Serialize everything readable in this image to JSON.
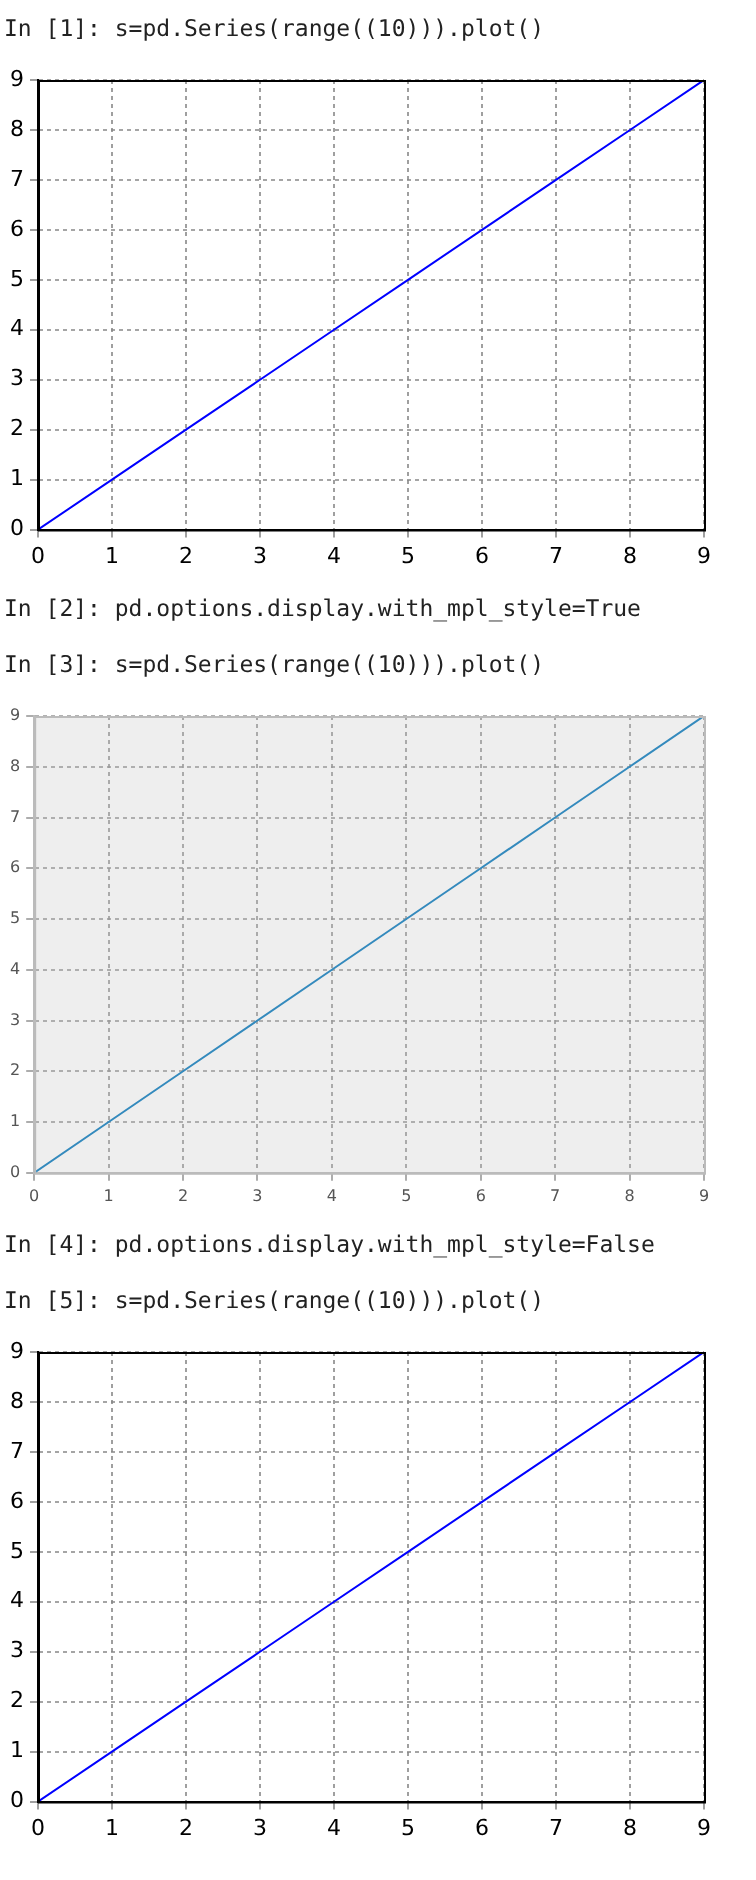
{
  "chart_data": [
    {
      "type": "line",
      "annotations": [
        "In [1]: s=pd.Series(range((10))).plot()"
      ],
      "x": [
        0,
        1,
        2,
        3,
        4,
        5,
        6,
        7,
        8,
        9
      ],
      "series": [
        {
          "color": "#0000ff",
          "values": [
            0,
            1,
            2,
            3,
            4,
            5,
            6,
            7,
            8,
            9
          ]
        }
      ],
      "xlim": [
        0,
        9
      ],
      "ylim": [
        0,
        9
      ],
      "xticks": [
        0,
        1,
        2,
        3,
        4,
        5,
        6,
        7,
        8,
        9
      ],
      "yticks": [
        0,
        1,
        2,
        3,
        4,
        5,
        6,
        7,
        8,
        9
      ],
      "grid": true,
      "legend": false,
      "marker": "none",
      "line_style": "solid"
    },
    {
      "type": "line",
      "annotations": [
        "In [2]: pd.options.display.with_mpl_style=True",
        "In [3]: s=pd.Series(range((10))).plot()"
      ],
      "x": [
        0,
        1,
        2,
        3,
        4,
        5,
        6,
        7,
        8,
        9
      ],
      "series": [
        {
          "color": "#348abd",
          "values": [
            0,
            1,
            2,
            3,
            4,
            5,
            6,
            7,
            8,
            9
          ]
        }
      ],
      "xlim": [
        0,
        9
      ],
      "ylim": [
        0,
        9
      ],
      "xticks": [
        0,
        1,
        2,
        3,
        4,
        5,
        6,
        7,
        8,
        9
      ],
      "yticks": [
        0,
        1,
        2,
        3,
        4,
        5,
        6,
        7,
        8,
        9
      ],
      "grid": true,
      "legend": false,
      "marker": "none",
      "line_style": "solid"
    },
    {
      "type": "line",
      "annotations": [
        "In [4]: pd.options.display.with_mpl_style=False",
        "In [5]: s=pd.Series(range((10))).plot()"
      ],
      "x": [
        0,
        1,
        2,
        3,
        4,
        5,
        6,
        7,
        8,
        9
      ],
      "series": [
        {
          "color": "#0000ff",
          "values": [
            0,
            1,
            2,
            3,
            4,
            5,
            6,
            7,
            8,
            9
          ]
        }
      ],
      "xlim": [
        0,
        9
      ],
      "ylim": [
        0,
        9
      ],
      "xticks": [
        0,
        1,
        2,
        3,
        4,
        5,
        6,
        7,
        8,
        9
      ],
      "yticks": [
        0,
        1,
        2,
        3,
        4,
        5,
        6,
        7,
        8,
        9
      ],
      "grid": true,
      "legend": false,
      "marker": "none",
      "line_style": "solid"
    }
  ]
}
